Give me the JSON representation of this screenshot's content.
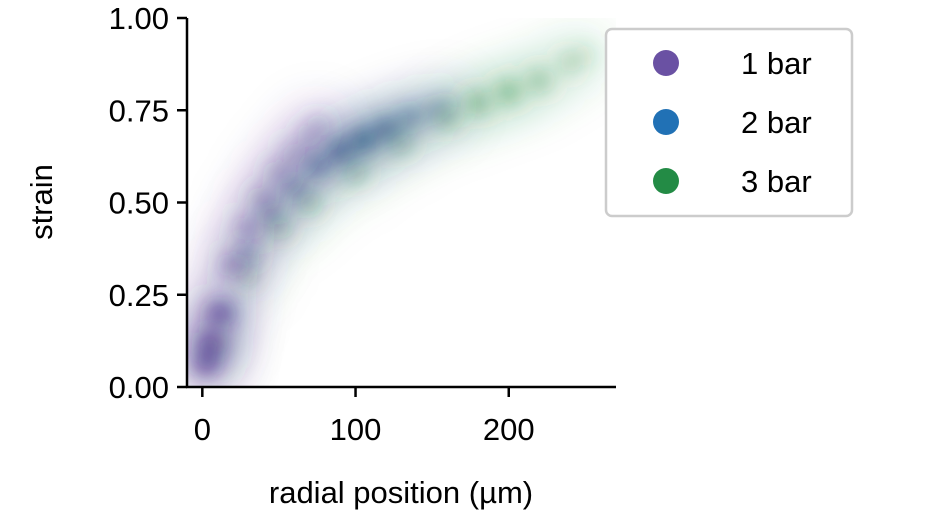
{
  "chart_data": {
    "type": "heatmap",
    "title": "",
    "xlabel": "radial position (µm)",
    "ylabel": "strain",
    "xlim": [
      -10,
      270
    ],
    "ylim": [
      0,
      1
    ],
    "x_ticks": [
      0,
      100,
      200
    ],
    "x_tick_labels": [
      "0",
      "100",
      "200"
    ],
    "y_ticks": [
      0,
      0.25,
      0.5,
      0.75,
      1.0
    ],
    "y_tick_labels": [
      "0.00",
      "0.25",
      "0.50",
      "0.75",
      "1.00"
    ],
    "grid": false,
    "legend": {
      "position": "right",
      "entries": [
        {
          "label": "1 bar",
          "color": "#6a51a3"
        },
        {
          "label": "2 bar",
          "color": "#2171b5"
        },
        {
          "label": "3 bar",
          "color": "#238b45"
        }
      ]
    },
    "series": [
      {
        "name": "1 bar",
        "color": "#54278f",
        "x_range": [
          0,
          78
        ],
        "density_ridge": [
          {
            "x": 2,
            "y": 0.06,
            "weight": 0.9
          },
          {
            "x": 5,
            "y": 0.12,
            "weight": 1.0
          },
          {
            "x": 10,
            "y": 0.2,
            "weight": 0.9
          },
          {
            "x": 20,
            "y": 0.33,
            "weight": 0.7
          },
          {
            "x": 30,
            "y": 0.43,
            "weight": 0.6
          },
          {
            "x": 40,
            "y": 0.51,
            "weight": 0.5
          },
          {
            "x": 50,
            "y": 0.58,
            "weight": 0.45
          },
          {
            "x": 60,
            "y": 0.63,
            "weight": 0.4
          },
          {
            "x": 70,
            "y": 0.68,
            "weight": 0.35
          },
          {
            "x": 76,
            "y": 0.71,
            "weight": 0.3
          }
        ]
      },
      {
        "name": "2 bar",
        "color": "#08306b",
        "x_range": [
          0,
          160
        ],
        "density_ridge": [
          {
            "x": 5,
            "y": 0.08,
            "weight": 0.6
          },
          {
            "x": 15,
            "y": 0.2,
            "weight": 0.55
          },
          {
            "x": 30,
            "y": 0.36,
            "weight": 0.5
          },
          {
            "x": 45,
            "y": 0.47,
            "weight": 0.5
          },
          {
            "x": 60,
            "y": 0.54,
            "weight": 0.55
          },
          {
            "x": 75,
            "y": 0.6,
            "weight": 0.7
          },
          {
            "x": 90,
            "y": 0.64,
            "weight": 0.9
          },
          {
            "x": 105,
            "y": 0.67,
            "weight": 1.0
          },
          {
            "x": 120,
            "y": 0.7,
            "weight": 0.85
          },
          {
            "x": 135,
            "y": 0.73,
            "weight": 0.6
          },
          {
            "x": 150,
            "y": 0.75,
            "weight": 0.4
          },
          {
            "x": 160,
            "y": 0.77,
            "weight": 0.25
          }
        ]
      },
      {
        "name": "3 bar",
        "color": "#238b45",
        "x_range": [
          0,
          250
        ],
        "density_ridge": [
          {
            "x": 10,
            "y": 0.12,
            "weight": 0.35
          },
          {
            "x": 30,
            "y": 0.3,
            "weight": 0.4
          },
          {
            "x": 50,
            "y": 0.43,
            "weight": 0.45
          },
          {
            "x": 70,
            "y": 0.5,
            "weight": 0.5
          },
          {
            "x": 100,
            "y": 0.58,
            "weight": 0.45
          },
          {
            "x": 130,
            "y": 0.66,
            "weight": 0.45
          },
          {
            "x": 160,
            "y": 0.73,
            "weight": 0.55
          },
          {
            "x": 180,
            "y": 0.77,
            "weight": 0.7
          },
          {
            "x": 200,
            "y": 0.8,
            "weight": 0.75
          },
          {
            "x": 220,
            "y": 0.83,
            "weight": 0.6
          },
          {
            "x": 240,
            "y": 0.88,
            "weight": 0.4
          },
          {
            "x": 250,
            "y": 0.9,
            "weight": 0.25
          }
        ]
      }
    ]
  }
}
